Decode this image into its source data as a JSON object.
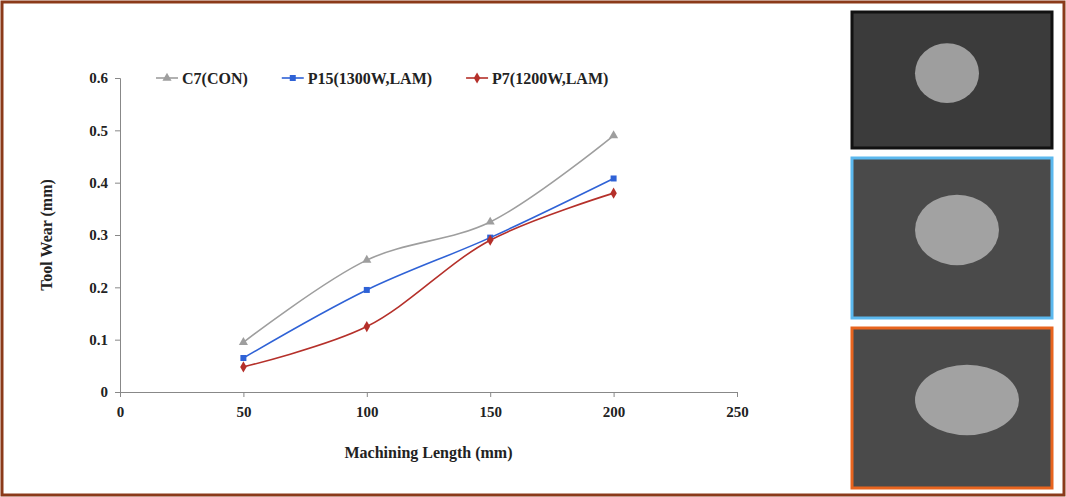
{
  "chart_data": {
    "type": "line",
    "x_label": "Machining Length (mm)",
    "y_label": "Tool Wear (mm)",
    "x": [
      50,
      100,
      150,
      200
    ],
    "series": [
      {
        "name": "C7(CON)",
        "color": "#9e9e9e",
        "marker": "triangle",
        "line_style": "smooth",
        "values": [
          0.095,
          0.252,
          0.325,
          0.49
        ]
      },
      {
        "name": "P15(1300W,LAM)",
        "color": "#2f62d6",
        "marker": "square",
        "line_style": "smooth",
        "values": [
          0.065,
          0.195,
          0.295,
          0.408
        ]
      },
      {
        "name": "P7(1200W,LAM)",
        "color": "#b5302a",
        "marker": "diamond",
        "line_style": "smooth",
        "values": [
          0.048,
          0.125,
          0.29,
          0.38
        ]
      }
    ],
    "xlim": [
      0,
      250
    ],
    "xticks": [
      0,
      50,
      100,
      150,
      200,
      250
    ],
    "ylim": [
      0,
      0.6
    ],
    "yticks": [
      0,
      0.1,
      0.2,
      0.3,
      0.4,
      0.5,
      0.6
    ],
    "grid": false,
    "legend": "top-left"
  }
}
